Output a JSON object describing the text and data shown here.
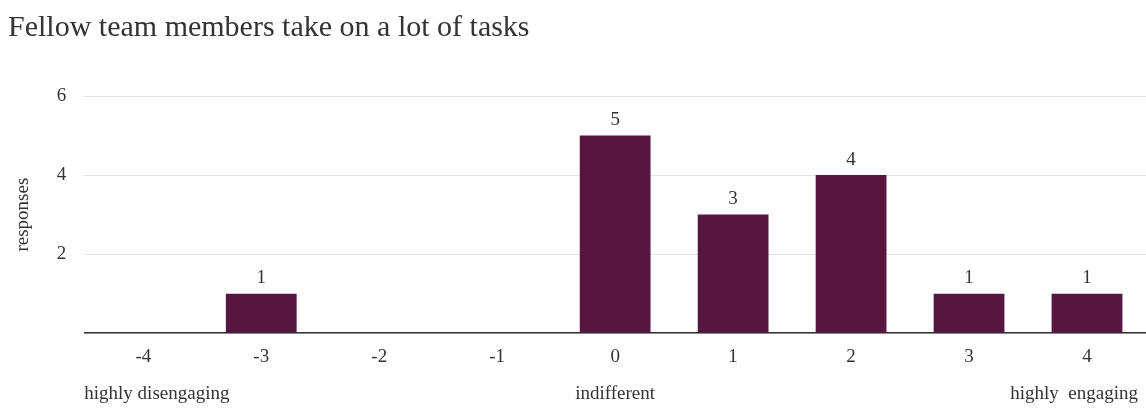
{
  "chart_data": {
    "type": "bar",
    "title": "Fellow team members take on a lot of tasks",
    "ylabel": "responses",
    "categories": [
      "-4",
      "-3",
      "-2",
      "-1",
      "0",
      "1",
      "2",
      "3",
      "4"
    ],
    "values": [
      0,
      1,
      0,
      0,
      5,
      3,
      4,
      1,
      1
    ],
    "value_labels": [
      null,
      "1",
      null,
      null,
      "5",
      "3",
      "4",
      "1",
      "1"
    ],
    "color": "#561640",
    "ylim": [
      0,
      6
    ],
    "yticks": [
      {
        "value": 0,
        "label": null
      },
      2,
      4,
      6
    ],
    "grid": "y",
    "legend": false,
    "annotations": [
      "highly disengaging",
      "indifferent",
      "highly  engaging"
    ]
  }
}
